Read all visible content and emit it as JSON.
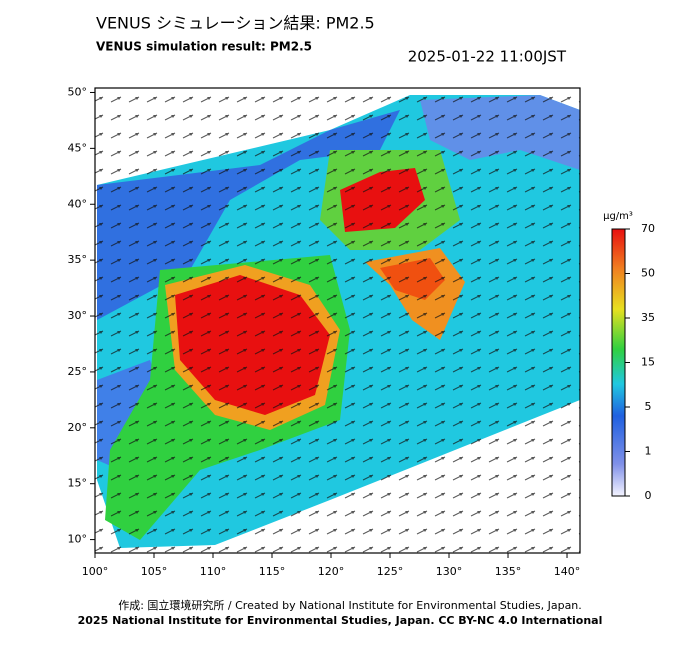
{
  "header": {
    "title": "VENUS シミュレーション結果: PM2.5",
    "subtitle": "VENUS simulation result: PM2.5",
    "datetime": "2025-01-22 11:00JST"
  },
  "map": {
    "xlim": [
      100,
      141.1
    ],
    "ylim": [
      8.8,
      50.4
    ],
    "lat_ticks": [
      {
        "value": 10,
        "label": "10°"
      },
      {
        "value": 15,
        "label": "15°"
      },
      {
        "value": 20,
        "label": "20°"
      },
      {
        "value": 25,
        "label": "25°"
      },
      {
        "value": 30,
        "label": "30°"
      },
      {
        "value": 35,
        "label": "35°"
      },
      {
        "value": 40,
        "label": "40°"
      },
      {
        "value": 45,
        "label": "45°"
      },
      {
        "value": 50,
        "label": "50°"
      }
    ],
    "lon_ticks": [
      {
        "value": 100,
        "label": "100°"
      },
      {
        "value": 105,
        "label": "105°"
      },
      {
        "value": 110,
        "label": "110°"
      },
      {
        "value": 115,
        "label": "115°"
      },
      {
        "value": 120,
        "label": "120°"
      },
      {
        "value": 125,
        "label": "125°"
      },
      {
        "value": 130,
        "label": "130°"
      },
      {
        "value": 135,
        "label": "135°"
      },
      {
        "value": 140,
        "label": "140°"
      }
    ]
  },
  "colorbar": {
    "unit": "μg/m³",
    "ticks": [
      0,
      1,
      5,
      15,
      35,
      50,
      70
    ]
  },
  "footer": {
    "credit": "作成: 国立環境研究所 / Created by National Institute for Environmental Studies, Japan.",
    "license": "2025 National Institute for Environmental Studies, Japan. CC BY-NC 4.0 International"
  }
}
